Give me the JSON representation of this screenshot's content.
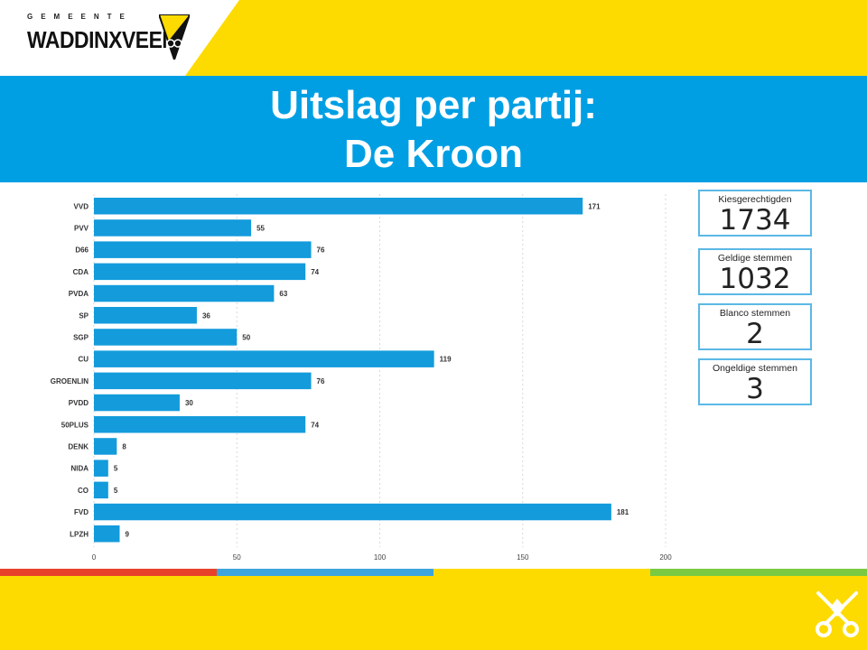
{
  "logo": {
    "small": "GEMEENTE",
    "big": "WADDINXVEEN"
  },
  "title": {
    "line1": "Uitslag per partij:",
    "line2": "De Kroon"
  },
  "colors": {
    "bar": "#139bdc",
    "band": "#009fe3",
    "yellow": "#fddb00",
    "stripe": [
      "#e8412a",
      "#3da5dc",
      "#fddb00",
      "#7ac943"
    ]
  },
  "chart_data": {
    "type": "bar",
    "orientation": "horizontal",
    "categories": [
      "VVD",
      "PVV",
      "D66",
      "CDA",
      "PVDA",
      "SP",
      "SGP",
      "CU",
      "GROENLIN",
      "PVDD",
      "50PLUS",
      "DENK",
      "NIDA",
      "CO",
      "FVD",
      "LPZH"
    ],
    "values": [
      171,
      55,
      76,
      74,
      63,
      36,
      50,
      119,
      76,
      30,
      74,
      8,
      5,
      5,
      181,
      9
    ],
    "xlim": [
      0,
      200
    ],
    "xticks": [
      0,
      50,
      100,
      150,
      200
    ],
    "grid": true,
    "data_labels": true
  },
  "stats": [
    {
      "label": "Kiesgerechtigden",
      "value": "1734"
    },
    {
      "label": "Geldige stemmen",
      "value": "1032"
    },
    {
      "label": "Blanco stemmen",
      "value": "2"
    },
    {
      "label": "Ongeldige stemmen",
      "value": "3"
    }
  ]
}
